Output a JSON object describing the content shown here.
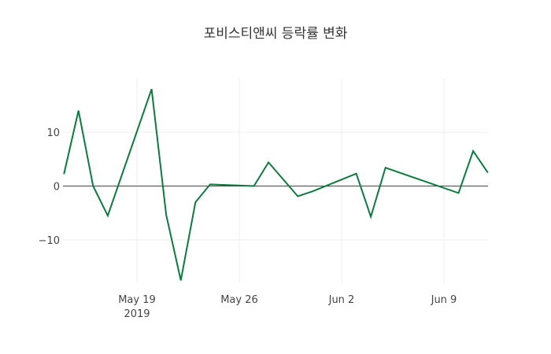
{
  "chart_data": {
    "type": "line",
    "title": "포비스티앤씨 등락률 변화",
    "xlabel": "",
    "ylabel": "",
    "x": [
      "2019-05-14",
      "2019-05-15",
      "2019-05-16",
      "2019-05-17",
      "2019-05-20",
      "2019-05-21",
      "2019-05-22",
      "2019-05-23",
      "2019-05-24",
      "2019-05-27",
      "2019-05-28",
      "2019-05-30",
      "2019-05-31",
      "2019-06-03",
      "2019-06-04",
      "2019-06-05",
      "2019-06-10",
      "2019-06-11",
      "2019-06-12"
    ],
    "series": [
      {
        "name": "등락률",
        "color": "#0d7a3e",
        "values": [
          2.2,
          14.0,
          0.0,
          -5.5,
          18.0,
          -5.3,
          -17.5,
          -3.0,
          0.3,
          0.0,
          4.4,
          -1.9,
          -1.0,
          2.3,
          -5.7,
          3.4,
          -1.3,
          6.5,
          2.5
        ]
      }
    ],
    "x_ticks": [
      {
        "label": "May 19",
        "sublabel": "2019",
        "date": "2019-05-19"
      },
      {
        "label": "May 26",
        "date": "2019-05-26"
      },
      {
        "label": "Jun 2",
        "date": "2019-06-02"
      },
      {
        "label": "Jun 9",
        "date": "2019-06-09"
      }
    ],
    "y_ticks": [
      10,
      0,
      -10
    ],
    "y_tick_labels": [
      "10",
      "0",
      "−10"
    ],
    "ylim": [
      -19,
      20
    ],
    "grid": true,
    "legend": "none"
  }
}
